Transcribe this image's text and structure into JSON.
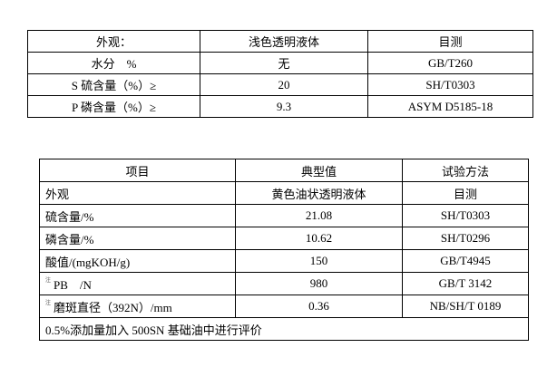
{
  "table1": {
    "rows": [
      [
        "外观：",
        "浅色透明液体",
        "目测"
      ],
      [
        "水分　%",
        "无",
        "GB/T260"
      ],
      [
        "S 硫含量（%）≥",
        "20",
        "SH/T0303"
      ],
      [
        "P 磷含量（%）≥",
        "9.3",
        "ASYM D5185-18"
      ]
    ]
  },
  "table2": {
    "headers": [
      "项目",
      "典型值",
      "试验方法"
    ],
    "rows": [
      {
        "note": "",
        "item": "外观",
        "value": "黄色油状透明液体",
        "method": "目测"
      },
      {
        "note": "",
        "item": "硫含量/%",
        "value": "21.08",
        "method": "SH/T0303"
      },
      {
        "note": "",
        "item": "磷含量/%",
        "value": "10.62",
        "method": "SH/T0296"
      },
      {
        "note": "",
        "item": "酸值/(mgKOH/g)",
        "value": "150",
        "method": "GB/T4945"
      },
      {
        "note": "注",
        "item": "PB　/N",
        "value": "980",
        "method": "GB/T 3142"
      },
      {
        "note": "注",
        "item": "磨斑直径（392N）/mm",
        "value": "0.36",
        "method": "NB/SH/T 0189"
      }
    ],
    "footnote": "0.5%添加量加入 500SN 基础油中进行评价"
  }
}
